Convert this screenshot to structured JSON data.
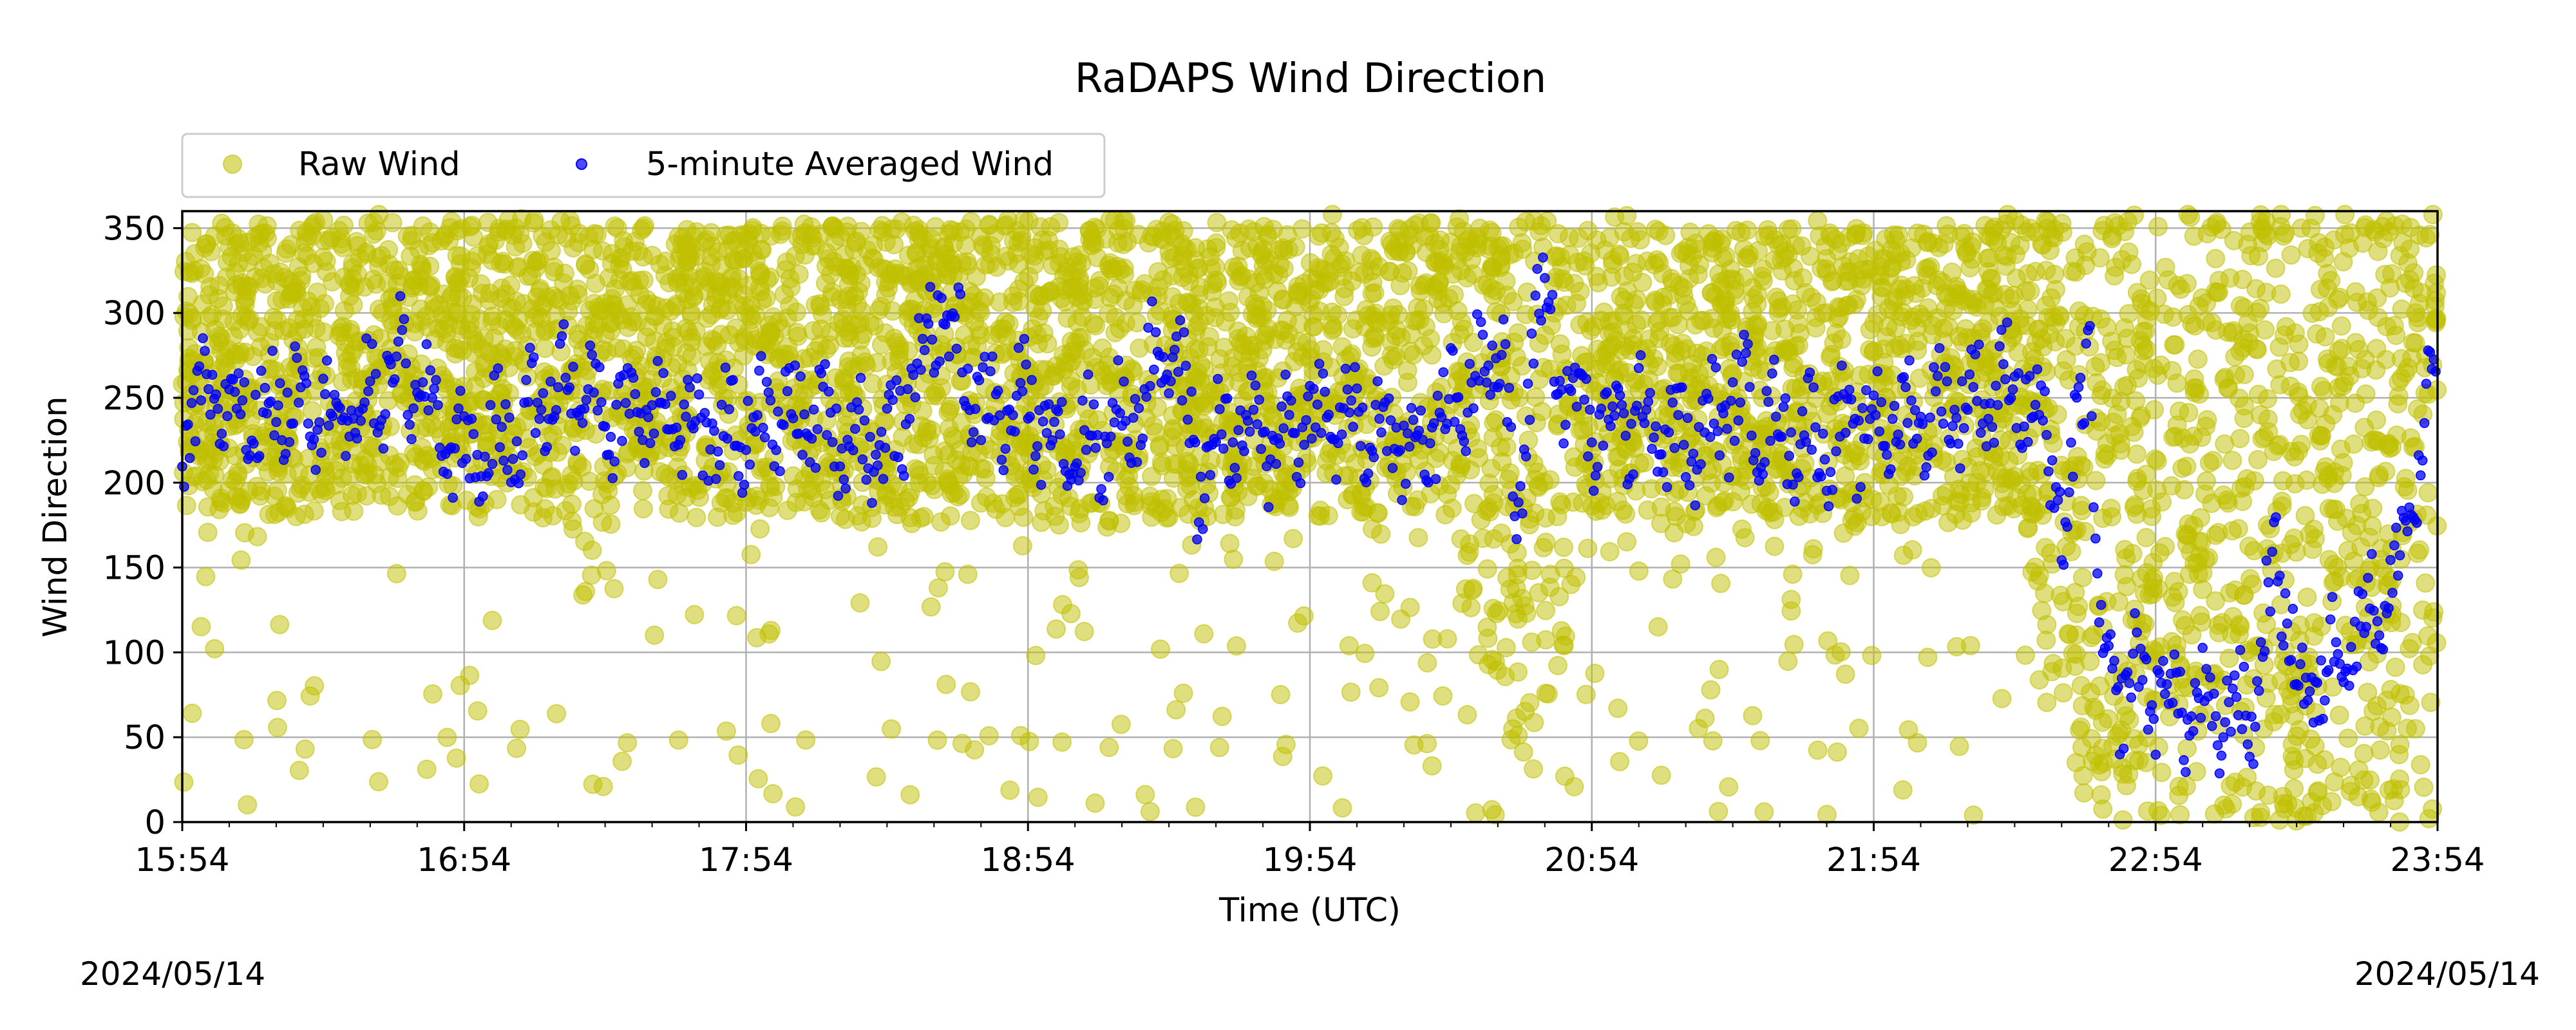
{
  "chart_data": {
    "type": "scatter",
    "title": "RaDAPS Wind Direction",
    "xlabel": "Time (UTC)",
    "ylabel": "Wind Direction",
    "x_ticks": [
      "15:54",
      "16:54",
      "17:54",
      "18:54",
      "19:54",
      "20:54",
      "21:54",
      "22:54",
      "23:54"
    ],
    "y_ticks": [
      0,
      50,
      100,
      150,
      200,
      250,
      300,
      350
    ],
    "xlim": [
      "15:54",
      "23:54"
    ],
    "ylim": [
      0,
      360
    ],
    "grid": true,
    "legend": {
      "placement": "top-left, above plot",
      "ncol": 2
    },
    "series": [
      {
        "name": "Raw Wind",
        "color": "#bfbf00",
        "marker": "large circle, semi-transparent",
        "profile": {
          "time": [
            "15:54",
            "16:24",
            "16:54",
            "17:24",
            "17:54",
            "18:24",
            "18:54",
            "19:24",
            "19:54",
            "20:24",
            "20:40",
            "20:54",
            "21:24",
            "21:54",
            "22:24",
            "22:40",
            "22:54",
            "23:24",
            "23:54"
          ],
          "typical_range_deg": [
            [
              180,
              350
            ],
            [
              180,
              355
            ],
            [
              180,
              355
            ],
            [
              175,
              355
            ],
            [
              180,
              350
            ],
            [
              175,
              355
            ],
            [
              175,
              355
            ],
            [
              175,
              355
            ],
            [
              180,
              350
            ],
            [
              180,
              355
            ],
            [
              0,
              355
            ],
            [
              170,
              350
            ],
            [
              170,
              350
            ],
            [
              170,
              350
            ],
            [
              180,
              355
            ],
            [
              0,
              355
            ],
            [
              0,
              360
            ],
            [
              0,
              360
            ],
            [
              0,
              360
            ]
          ]
        }
      },
      {
        "name": "5-minute Averaged Wind",
        "color": "#0000ff",
        "marker": "small circle",
        "points": {
          "time": [
            "15:54",
            "16:00",
            "16:10",
            "16:20",
            "16:30",
            "16:40",
            "16:54",
            "17:05",
            "17:15",
            "17:25",
            "17:35",
            "17:45",
            "17:54",
            "18:05",
            "18:15",
            "18:25",
            "18:35",
            "18:45",
            "18:54",
            "19:05",
            "19:15",
            "19:25",
            "19:30",
            "19:35",
            "19:45",
            "19:54",
            "20:05",
            "20:15",
            "20:25",
            "20:35",
            "20:38",
            "20:42",
            "20:48",
            "20:54",
            "21:05",
            "21:15",
            "21:25",
            "21:35",
            "21:45",
            "21:54",
            "22:05",
            "22:15",
            "22:25",
            "22:30",
            "22:35",
            "22:40",
            "22:42",
            "22:45",
            "22:50",
            "22:54",
            "23:05",
            "23:15",
            "23:20",
            "23:25",
            "23:35",
            "23:45",
            "23:54"
          ],
          "values": [
            225,
            250,
            240,
            255,
            235,
            270,
            215,
            230,
            260,
            240,
            250,
            225,
            235,
            240,
            230,
            220,
            305,
            240,
            245,
            220,
            235,
            290,
            200,
            230,
            225,
            240,
            235,
            220,
            245,
            290,
            150,
            320,
            260,
            230,
            240,
            220,
            250,
            230,
            225,
            235,
            240,
            250,
            260,
            230,
            165,
            300,
            90,
            80,
            85,
            80,
            60,
            70,
            160,
            70,
            110,
            140,
            270
          ]
        }
      }
    ],
    "annotations": {
      "left_date": "2024/05/14",
      "right_date": "2024/05/14"
    }
  }
}
